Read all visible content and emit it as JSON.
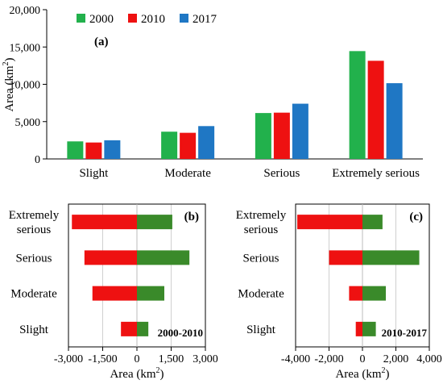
{
  "chart_data": [
    {
      "panel": "(a)",
      "type": "bar",
      "ylabel_base": "Area (km",
      "ylabel_sup": "2",
      "ylabel_end": ")",
      "ylim": [
        0,
        20000
      ],
      "yticks": [
        0,
        5000,
        10000,
        15000,
        20000
      ],
      "ytick_labels": [
        "0",
        "5,000",
        "10,000",
        "15,000",
        "20,000"
      ],
      "categories": [
        "Slight",
        "Moderate",
        "Serious",
        "Extremely serious"
      ],
      "legend_position": "top-left",
      "series": [
        {
          "name": "2000",
          "color": "#22b14c",
          "values": [
            2350,
            3650,
            6150,
            14450
          ]
        },
        {
          "name": "2010",
          "color": "#ee1111",
          "values": [
            2200,
            3500,
            6200,
            13150
          ]
        },
        {
          "name": "2017",
          "color": "#1f77c4",
          "values": [
            2500,
            4400,
            7400,
            10150
          ]
        }
      ]
    },
    {
      "panel": "(b)",
      "type": "bar",
      "orientation": "horizontal",
      "period": "2000-2010",
      "xlabel_base": "Area (km",
      "xlabel_sup": "2",
      "xlabel_end": ")",
      "xlim": [
        -3000,
        3000
      ],
      "xticks": [
        -3000,
        -1500,
        0,
        1500,
        3000
      ],
      "xtick_labels": [
        "-3,000",
        "-1,500",
        "0",
        "1,500",
        "3,000"
      ],
      "categories": [
        "Extremely serious",
        "Serious",
        "Moderate",
        "Slight"
      ],
      "category_lines": [
        [
          "Extremely",
          "serious"
        ],
        [
          "Serious"
        ],
        [
          "Moderate"
        ],
        [
          "Slight"
        ]
      ],
      "negative_values": [
        -2850,
        -2300,
        -1950,
        -700
      ],
      "positive_values": [
        1550,
        2300,
        1200,
        500
      ],
      "negative_color": "#ee1111",
      "positive_color": "#3a8a2a",
      "grid": true
    },
    {
      "panel": "(c)",
      "type": "bar",
      "orientation": "horizontal",
      "period": "2010-2017",
      "xlabel_base": "Area (km",
      "xlabel_sup": "2",
      "xlabel_end": ")",
      "xlim": [
        -4000,
        4000
      ],
      "xticks": [
        -4000,
        -2000,
        0,
        2000,
        4000
      ],
      "xtick_labels": [
        "-4,000",
        "-2,000",
        "0",
        "2,000",
        "4,000"
      ],
      "categories": [
        "Extremely serious",
        "Serious",
        "Moderate",
        "Slight"
      ],
      "category_lines": [
        [
          "Extremely",
          "serious"
        ],
        [
          "Serious"
        ],
        [
          "Moderate"
        ],
        [
          "Slight"
        ]
      ],
      "negative_values": [
        -3900,
        -2000,
        -800,
        -400
      ],
      "positive_values": [
        1200,
        3400,
        1400,
        800
      ],
      "negative_color": "#ee1111",
      "positive_color": "#3a8a2a",
      "grid": true
    }
  ]
}
